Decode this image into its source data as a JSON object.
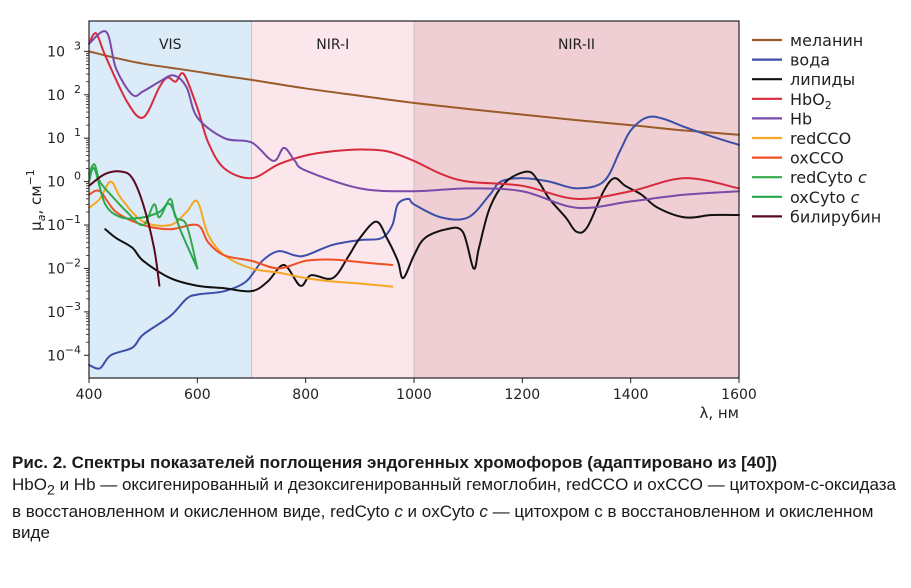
{
  "chart_data": {
    "type": "line",
    "x_axis": {
      "label_text": "λ, нм",
      "range": [
        400,
        1600
      ],
      "ticks": [
        400,
        600,
        800,
        1000,
        1200,
        1400,
        1600
      ],
      "tick_labels": [
        "400",
        "600",
        "800",
        "1000",
        "1200",
        "1400",
        "1600"
      ]
    },
    "y_axis": {
      "label_main": "μ",
      "label_sub": "a",
      "label_unit": ", см",
      "label_sup": "−1",
      "scale": "log",
      "range": [
        3e-05,
        5000
      ],
      "ticks": [
        0.0001,
        0.001,
        0.01,
        0.1,
        1,
        10,
        100,
        1000
      ],
      "tick_bases": [
        "10",
        "10",
        "10",
        "10",
        "10",
        "10",
        "10",
        "10"
      ],
      "tick_exps": [
        "−4",
        "−3",
        "−2",
        "−1",
        "0",
        "1",
        "2",
        "3"
      ]
    },
    "regions": [
      {
        "label": "VIS",
        "from": 400,
        "to": 700,
        "color": "#dcebf8"
      },
      {
        "label": "NIR-I",
        "from": 700,
        "to": 1000,
        "color": "#fbe6ec"
      },
      {
        "label": "NIR-II",
        "from": 1000,
        "to": 1600,
        "color": "#efcfd3"
      }
    ],
    "grid": false,
    "legend_position": "outside-right",
    "series": [
      {
        "id": "melanin",
        "name": "меланин",
        "name_sub": "",
        "name_italic": "",
        "color": "#9a5a2a",
        "points": [
          [
            400,
            1000
          ],
          [
            450,
            700
          ],
          [
            500,
            520
          ],
          [
            550,
            420
          ],
          [
            600,
            340
          ],
          [
            650,
            270
          ],
          [
            700,
            220
          ],
          [
            800,
            140
          ],
          [
            900,
            95
          ],
          [
            1000,
            65
          ],
          [
            1100,
            47
          ],
          [
            1200,
            35
          ],
          [
            1300,
            26
          ],
          [
            1400,
            20
          ],
          [
            1500,
            15
          ],
          [
            1600,
            12
          ]
        ]
      },
      {
        "id": "water",
        "name": "вода",
        "name_sub": "",
        "name_italic": "",
        "color": "#3b4fa8",
        "points": [
          [
            400,
            6e-05
          ],
          [
            420,
            5e-05
          ],
          [
            440,
            0.0001
          ],
          [
            480,
            0.00015
          ],
          [
            500,
            0.0003
          ],
          [
            550,
            0.0008
          ],
          [
            580,
            0.002
          ],
          [
            600,
            0.0025
          ],
          [
            650,
            0.003
          ],
          [
            690,
            0.005
          ],
          [
            720,
            0.015
          ],
          [
            750,
            0.025
          ],
          [
            780,
            0.02
          ],
          [
            800,
            0.02
          ],
          [
            850,
            0.035
          ],
          [
            900,
            0.045
          ],
          [
            940,
            0.05
          ],
          [
            960,
            0.1
          ],
          [
            970,
            0.3
          ],
          [
            990,
            0.4
          ],
          [
            1000,
            0.3
          ],
          [
            1050,
            0.15
          ],
          [
            1100,
            0.15
          ],
          [
            1140,
            0.5
          ],
          [
            1160,
            1
          ],
          [
            1200,
            1.2
          ],
          [
            1250,
            1
          ],
          [
            1300,
            0.7
          ],
          [
            1350,
            1
          ],
          [
            1380,
            5
          ],
          [
            1400,
            15
          ],
          [
            1430,
            30
          ],
          [
            1460,
            28
          ],
          [
            1500,
            18
          ],
          [
            1550,
            11
          ],
          [
            1600,
            7
          ]
        ]
      },
      {
        "id": "lipids",
        "name": "липиды",
        "name_sub": "",
        "name_italic": "",
        "color": "#111111",
        "points": [
          [
            430,
            0.08
          ],
          [
            450,
            0.05
          ],
          [
            480,
            0.03
          ],
          [
            500,
            0.015
          ],
          [
            550,
            0.006
          ],
          [
            600,
            0.004
          ],
          [
            650,
            0.0035
          ],
          [
            700,
            0.003
          ],
          [
            730,
            0.005
          ],
          [
            760,
            0.012
          ],
          [
            790,
            0.004
          ],
          [
            810,
            0.007
          ],
          [
            850,
            0.006
          ],
          [
            880,
            0.02
          ],
          [
            900,
            0.05
          ],
          [
            930,
            0.12
          ],
          [
            950,
            0.05
          ],
          [
            970,
            0.015
          ],
          [
            980,
            0.006
          ],
          [
            1000,
            0.02
          ],
          [
            1020,
            0.05
          ],
          [
            1060,
            0.08
          ],
          [
            1090,
            0.07
          ],
          [
            1110,
            0.01
          ],
          [
            1120,
            0.03
          ],
          [
            1140,
            0.25
          ],
          [
            1170,
            1
          ],
          [
            1210,
            1.7
          ],
          [
            1230,
            1
          ],
          [
            1250,
            0.4
          ],
          [
            1280,
            0.15
          ],
          [
            1300,
            0.07
          ],
          [
            1320,
            0.09
          ],
          [
            1350,
            0.6
          ],
          [
            1370,
            1.2
          ],
          [
            1390,
            0.8
          ],
          [
            1420,
            0.5
          ],
          [
            1450,
            0.25
          ],
          [
            1500,
            0.15
          ],
          [
            1550,
            0.17
          ],
          [
            1600,
            0.17
          ]
        ]
      },
      {
        "id": "hbo2",
        "name": "HbO",
        "name_sub": "2",
        "name_italic": "",
        "color": "#d62a3d",
        "points": [
          [
            400,
            1500
          ],
          [
            413,
            2600
          ],
          [
            430,
            800
          ],
          [
            470,
            70
          ],
          [
            500,
            30
          ],
          [
            530,
            150
          ],
          [
            545,
            250
          ],
          [
            560,
            200
          ],
          [
            575,
            300
          ],
          [
            600,
            50
          ],
          [
            620,
            8
          ],
          [
            650,
            2
          ],
          [
            700,
            1.2
          ],
          [
            750,
            2.5
          ],
          [
            800,
            4
          ],
          [
            850,
            5
          ],
          [
            900,
            5.5
          ],
          [
            950,
            5
          ],
          [
            1000,
            3
          ],
          [
            1050,
            1.5
          ],
          [
            1100,
            1
          ],
          [
            1200,
            0.8
          ],
          [
            1300,
            0.4
          ],
          [
            1400,
            0.6
          ],
          [
            1500,
            1.2
          ],
          [
            1600,
            0.7
          ]
        ]
      },
      {
        "id": "hb",
        "name": "Hb",
        "name_sub": "",
        "name_italic": "",
        "color": "#7a4aa8",
        "points": [
          [
            400,
            1500
          ],
          [
            432,
            2800
          ],
          [
            450,
            400
          ],
          [
            480,
            100
          ],
          [
            500,
            120
          ],
          [
            530,
            200
          ],
          [
            556,
            280
          ],
          [
            580,
            150
          ],
          [
            600,
            30
          ],
          [
            650,
            10
          ],
          [
            700,
            8
          ],
          [
            740,
            3
          ],
          [
            760,
            6
          ],
          [
            780,
            3
          ],
          [
            800,
            1.8
          ],
          [
            900,
            0.7
          ],
          [
            1000,
            0.6
          ],
          [
            1100,
            0.7
          ],
          [
            1200,
            0.6
          ],
          [
            1300,
            0.25
          ],
          [
            1400,
            0.35
          ],
          [
            1500,
            0.5
          ],
          [
            1600,
            0.6
          ]
        ]
      },
      {
        "id": "redcco",
        "name": "redCCO",
        "name_sub": "",
        "name_italic": "",
        "color": "#f5a623",
        "points": [
          [
            400,
            0.25
          ],
          [
            420,
            0.4
          ],
          [
            440,
            1.0
          ],
          [
            460,
            0.4
          ],
          [
            500,
            0.12
          ],
          [
            550,
            0.1
          ],
          [
            580,
            0.2
          ],
          [
            600,
            0.35
          ],
          [
            620,
            0.06
          ],
          [
            650,
            0.02
          ],
          [
            700,
            0.01
          ],
          [
            750,
            0.008
          ],
          [
            800,
            0.006
          ],
          [
            850,
            0.005
          ],
          [
            900,
            0.0045
          ],
          [
            960,
            0.0038
          ]
        ]
      },
      {
        "id": "oxcco",
        "name": "oxCCO",
        "name_sub": "",
        "name_italic": "",
        "color": "#f04e23",
        "points": [
          [
            400,
            0.5
          ],
          [
            420,
            0.6
          ],
          [
            450,
            0.2
          ],
          [
            500,
            0.1
          ],
          [
            550,
            0.08
          ],
          [
            600,
            0.1
          ],
          [
            620,
            0.04
          ],
          [
            650,
            0.02
          ],
          [
            700,
            0.015
          ],
          [
            750,
            0.01
          ],
          [
            800,
            0.015
          ],
          [
            850,
            0.016
          ],
          [
            900,
            0.014
          ],
          [
            960,
            0.012
          ]
        ]
      },
      {
        "id": "redcyto",
        "name": "redCyto ",
        "name_sub": "",
        "name_italic": "c",
        "color": "#34a84a",
        "points": [
          [
            400,
            1.5
          ],
          [
            410,
            2.5
          ],
          [
            420,
            1.0
          ],
          [
            440,
            0.5
          ],
          [
            470,
            0.2
          ],
          [
            500,
            0.1
          ],
          [
            520,
            0.3
          ],
          [
            530,
            0.15
          ],
          [
            550,
            0.4
          ],
          [
            560,
            0.15
          ],
          [
            580,
            0.1
          ],
          [
            600,
            0.01
          ]
        ]
      },
      {
        "id": "oxcyto",
        "name": "oxCyto ",
        "name_sub": "",
        "name_italic": "c",
        "color": "#27a84f",
        "points": [
          [
            400,
            1.0
          ],
          [
            410,
            2.0
          ],
          [
            430,
            0.3
          ],
          [
            460,
            0.15
          ],
          [
            500,
            0.15
          ],
          [
            530,
            0.2
          ],
          [
            550,
            0.3
          ],
          [
            570,
            0.07
          ],
          [
            600,
            0.01
          ]
        ]
      },
      {
        "id": "bilirubin",
        "name": "билирубин",
        "name_sub": "",
        "name_italic": "",
        "color": "#5a0a1e",
        "points": [
          [
            400,
            0.8
          ],
          [
            430,
            1.5
          ],
          [
            460,
            1.7
          ],
          [
            480,
            1.2
          ],
          [
            500,
            0.3
          ],
          [
            520,
            0.03
          ],
          [
            530,
            0.004
          ]
        ]
      }
    ]
  },
  "caption": {
    "title": "Рис. 2. Спектры показателей поглощения эндогенных хромофоров (адаптировано из [40])",
    "line1_a": "HbO",
    "line1_sub": "2",
    "line1_b": " и Hb — оксигенированный и дезоксигенированный гемоглобин, redCCO и oxCCO — цитохром-с-оксидаза в восстановленном и окисленном виде, redCyto ",
    "line1_c_italic": "c",
    "line1_d": " и oxCyto ",
    "line1_e_italic": "c",
    "line1_f": " — цитохром с в восстановленном и окисленном виде"
  }
}
